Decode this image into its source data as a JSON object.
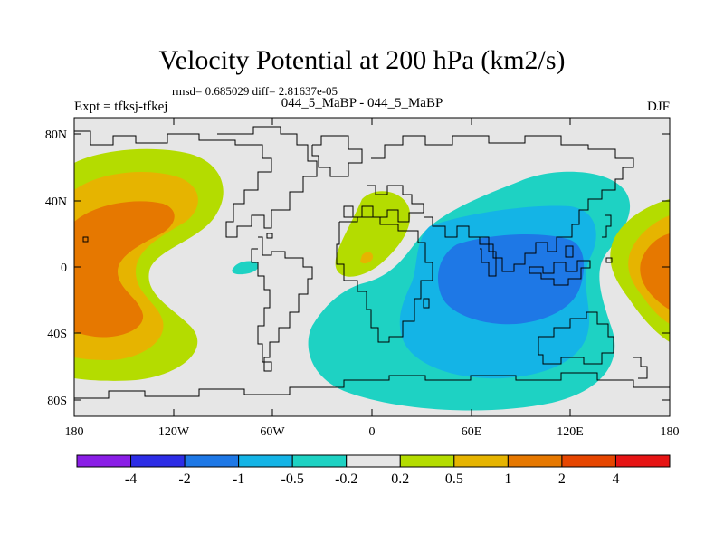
{
  "title": "Velocity Potential at 200 hPa (km2/s)",
  "subtitle_stats": "rmsd= 0.685029 diff= 2.81637e-05",
  "left_label": "Expt = tfksj-tfkej",
  "center_label": "044_5_MaBP - 044_5_MaBP",
  "right_label": "DJF",
  "lat_ticks": [
    "80N",
    "40N",
    "0",
    "40S",
    "80S"
  ],
  "lon_ticks": [
    "180",
    "120W",
    "60W",
    "0",
    "60E",
    "120E",
    "180"
  ],
  "colorbar": {
    "labels": [
      "-4",
      "-2",
      "-1",
      "-0.5",
      "-0.2",
      "0.2",
      "0.5",
      "1",
      "2",
      "4"
    ],
    "colors": [
      "#8a1ee6",
      "#2d2de6",
      "#1e78e6",
      "#14b4e6",
      "#1ed2c3",
      "#e6e6e6",
      "#b4dc00",
      "#e6b400",
      "#e67800",
      "#e64600",
      "#e61414"
    ]
  },
  "colors": {
    "neutral": "#e6e6e6",
    "green": "#b4dc00",
    "yellow": "#e6b400",
    "orange": "#e67800",
    "teal": "#1ed2c3",
    "cyan": "#14b4e6",
    "blue": "#1e78e6"
  }
}
